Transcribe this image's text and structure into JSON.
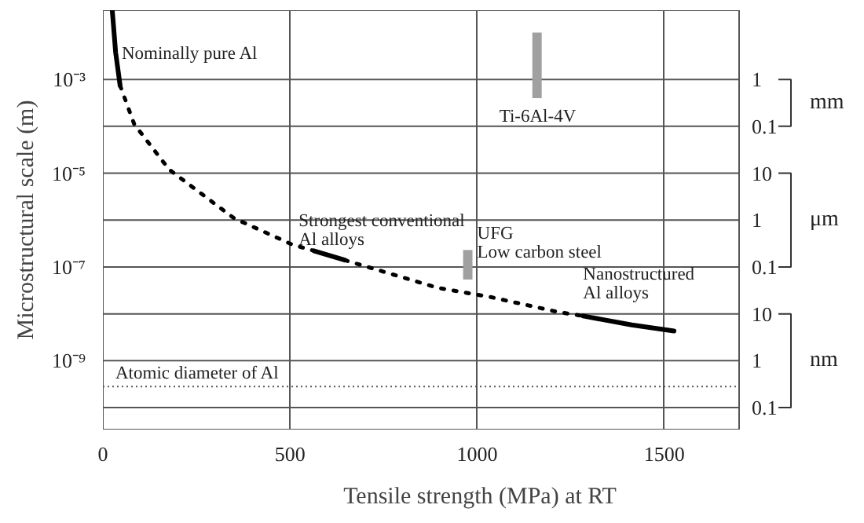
{
  "chart_data": {
    "type": "line",
    "xlabel": "Tensile strength (MPa) at RT",
    "ylabel": "Microstructural scale (m)",
    "log": "y",
    "grid": true,
    "xlim": [
      0,
      1700
    ],
    "xticks": [
      0,
      500,
      1000,
      1500
    ],
    "ylim": [
      3.4e-11,
      0.03
    ],
    "yticks": [
      {
        "value": 0.001,
        "label": "10⁻³"
      },
      {
        "value": 1e-05,
        "label": "10⁻⁵"
      },
      {
        "value": 1e-07,
        "label": "10⁻⁷"
      },
      {
        "value": 1e-09,
        "label": "10⁻⁹"
      }
    ],
    "series": [
      {
        "name": "Nominally pure Al",
        "line_style": "solid",
        "color": "#000000",
        "x": [
          25,
          34,
          46
        ],
        "values": [
          0.03,
          0.0038,
          0.00074
        ]
      },
      {
        "line_style": "dotted",
        "color": "#000000",
        "x": [
          46,
          84,
          177,
          350,
          506,
          565
        ],
        "values": [
          0.00074,
          0.00011,
          1.2e-05,
          1.1e-06,
          3e-07,
          2.2e-07
        ]
      },
      {
        "name": "Strongest conventional\nAl alloys",
        "line_style": "solid",
        "color": "#000000",
        "x": [
          565,
          646
        ],
        "values": [
          2.2e-07,
          1.4e-07
        ]
      },
      {
        "line_style": "dotted",
        "color": "#000000",
        "x": [
          646,
          894,
          1034,
          1215,
          1283
        ],
        "values": [
          1.4e-07,
          3.6e-08,
          2.3e-08,
          1.1e-08,
          9e-09
        ]
      },
      {
        "name": "Nanostructured\nAl alloys",
        "line_style": "solid",
        "color": "#000000",
        "x": [
          1283,
          1413,
          1526
        ],
        "values": [
          9e-09,
          5.8e-09,
          4.3e-09
        ]
      },
      {
        "name": "UFG\nLow carbon steel",
        "type": "bar",
        "color": "#a0a0a0",
        "x": [
          975
        ],
        "base": [
          5.4e-08
        ],
        "values": [
          1.76e-07
        ]
      },
      {
        "name": "Ti-6Al-4V",
        "type": "bar",
        "color": "#a0a0a0",
        "x": [
          1160
        ],
        "base": [
          0.0004
        ],
        "values": [
          0.0096
        ]
      }
    ],
    "ref_lines": [
      {
        "axis": "y",
        "value": 2.8e-10,
        "label": "Atomic diameter of Al",
        "line_style": "dotted",
        "color": "#555555"
      }
    ],
    "annotations": [
      "1",
      "0.1",
      "mm",
      "10",
      "1",
      "0.1",
      "μm",
      "10",
      "1",
      "0.1",
      "nm"
    ]
  }
}
